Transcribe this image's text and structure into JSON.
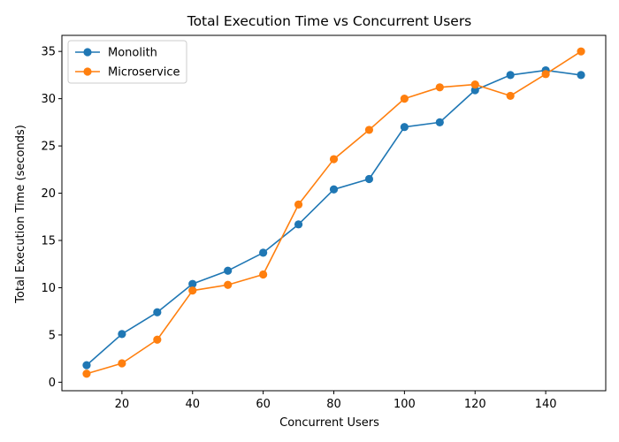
{
  "chart_data": {
    "type": "line",
    "title": "Total Execution Time vs Concurrent Users",
    "xlabel": "Concurrent Users",
    "ylabel": "Total Execution Time (seconds)",
    "xlim": [
      3,
      157
    ],
    "ylim": [
      -0.9,
      36.7
    ],
    "xticks": [
      20,
      40,
      60,
      80,
      100,
      120,
      140
    ],
    "yticks": [
      0,
      5,
      10,
      15,
      20,
      25,
      30,
      35
    ],
    "grid": false,
    "legend_position": "top-left",
    "x": [
      10,
      20,
      30,
      40,
      50,
      60,
      70,
      80,
      90,
      100,
      110,
      120,
      130,
      140,
      150
    ],
    "series": [
      {
        "name": "Monolith",
        "color": "#1f77b4",
        "values": [
          1.8,
          5.1,
          7.4,
          10.4,
          11.8,
          13.7,
          16.7,
          20.4,
          21.5,
          27.0,
          27.5,
          30.9,
          32.5,
          33.0,
          32.5
        ]
      },
      {
        "name": "Microservice",
        "color": "#ff7f0e",
        "values": [
          0.9,
          2.0,
          4.5,
          9.7,
          10.3,
          11.4,
          18.8,
          23.6,
          26.7,
          30.0,
          31.2,
          31.5,
          30.3,
          32.6,
          35.0
        ]
      }
    ]
  }
}
